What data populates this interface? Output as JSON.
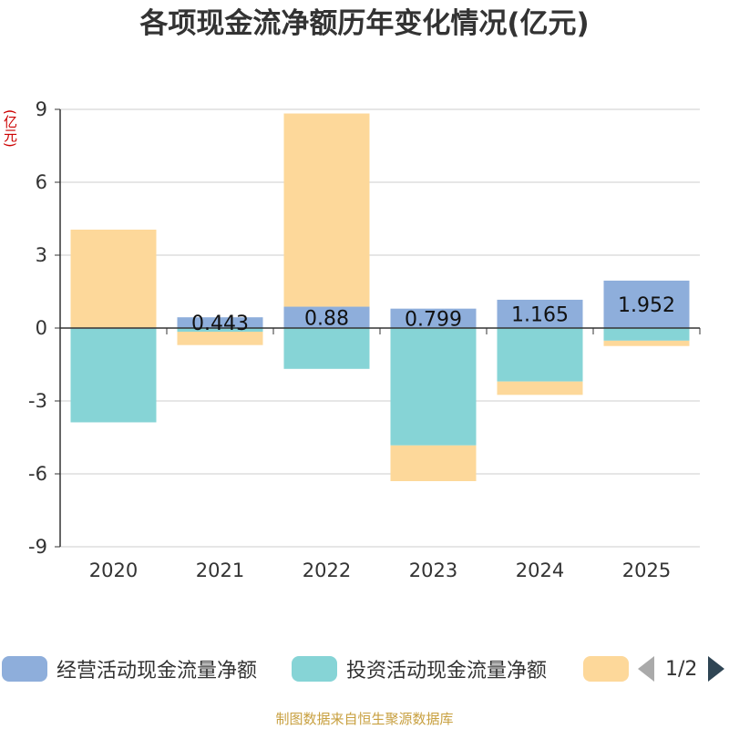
{
  "title": "各项现金流净额历年变化情况(亿元)",
  "source": "制图数据来自恒生聚源数据库",
  "chart_data": {
    "type": "bar",
    "stacked": true,
    "title": "各项现金流净额历年变化情况(亿元)",
    "xlabel": "",
    "ylabel": "(亿元)",
    "ylim": [
      -9,
      9
    ],
    "yticks": [
      9,
      6,
      3,
      0,
      -3,
      -6,
      -9
    ],
    "categories": [
      "2020",
      "2021",
      "2022",
      "2023",
      "2024",
      "2025"
    ],
    "series": [
      {
        "name": "经营活动现金流量净额",
        "color": "#8eaedb",
        "values": [
          -0.03,
          0.443,
          0.88,
          0.799,
          1.165,
          1.952
        ],
        "labels": [
          "",
          "0.443",
          "0.88",
          "0.799",
          "1.165",
          "1.952"
        ]
      },
      {
        "name": "投资活动现金流量净额",
        "color": "#86d4d6",
        "values": [
          -3.85,
          -0.15,
          -1.68,
          -4.83,
          -2.2,
          -0.52
        ]
      },
      {
        "name": "",
        "color": "#fdd89a",
        "values": [
          4.05,
          -0.55,
          7.95,
          -1.47,
          -0.55,
          -0.22
        ]
      }
    ],
    "legend": {
      "position": "bottom",
      "page": "1/2"
    }
  }
}
